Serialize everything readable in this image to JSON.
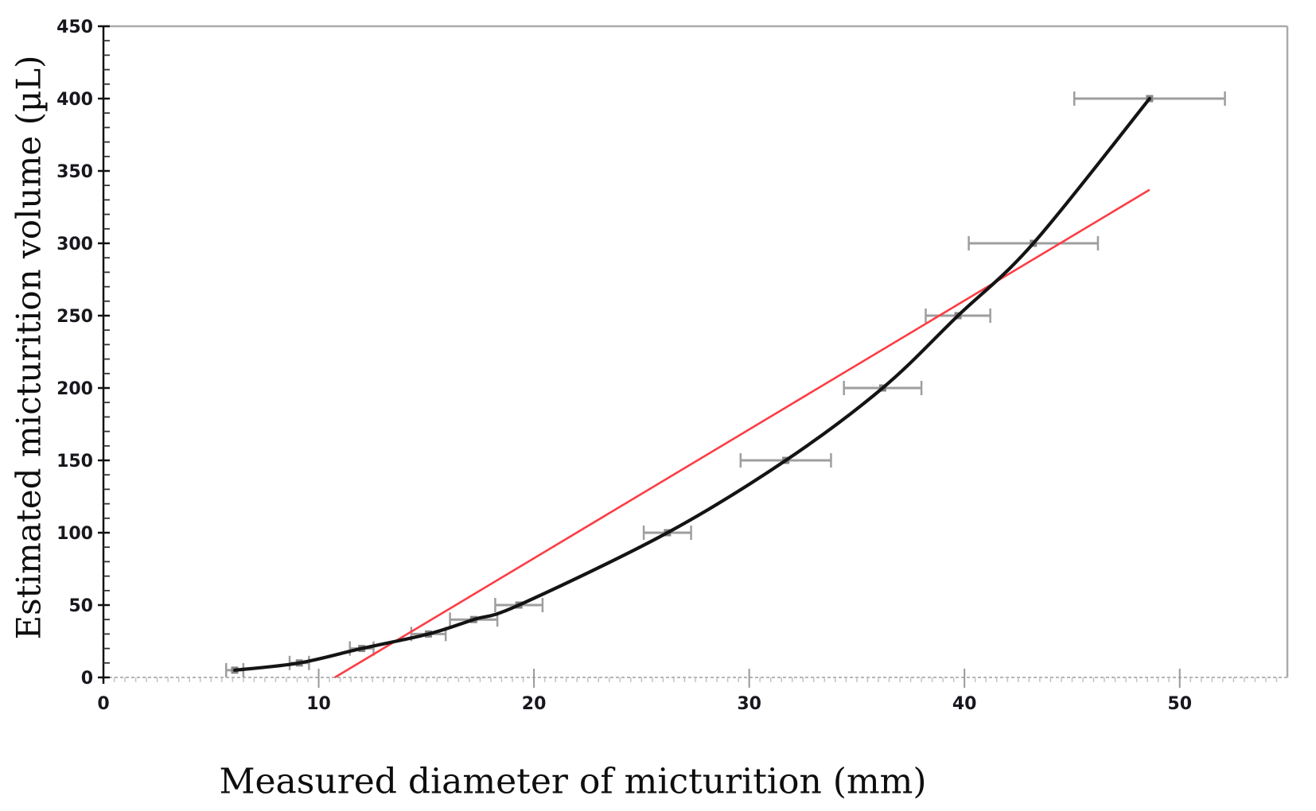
{
  "figure": {
    "x_axis_title": "Measured diameter of micturition (mm)",
    "y_axis_title": "Estimated micturition volume (µL)"
  },
  "chart_data": {
    "type": "scatter",
    "title": "",
    "xlabel": "Measured diameter of micturition (mm)",
    "ylabel": "Estimated micturition volume (µL)",
    "xlim": [
      0,
      55
    ],
    "ylim": [
      0,
      450
    ],
    "x_ticks_major": [
      0,
      10,
      20,
      30,
      40,
      50
    ],
    "x_tick_minor_step": 0.5,
    "y_ticks_major": [
      0,
      50,
      100,
      150,
      200,
      250,
      300,
      350,
      400,
      450
    ],
    "y_tick_minor_step": 10,
    "grid": "off",
    "legend": "none",
    "series": [
      {
        "name": "measured data with horizontal error bars",
        "role": "data-points",
        "marker": "square",
        "marker_color": "#858585",
        "errorbar_color": "#9e9e9e",
        "x": [
          6.1,
          9.1,
          12.0,
          15.1,
          17.2,
          19.3,
          26.2,
          31.7,
          36.2,
          39.7,
          43.2,
          48.6
        ],
        "y": [
          5,
          10,
          20,
          30,
          40,
          50,
          100,
          150,
          200,
          250,
          300,
          400
        ],
        "xerr": [
          0.4,
          0.45,
          0.55,
          0.8,
          1.1,
          1.1,
          1.1,
          2.1,
          1.8,
          1.5,
          3.0,
          3.5
        ]
      },
      {
        "name": "smooth curve fit through data points",
        "role": "curve-fit",
        "color": "#141414",
        "follows_points_of": "measured data with horizontal error bars"
      },
      {
        "name": "linear fit line",
        "role": "linear-fit",
        "color": "#fc3d44",
        "x": [
          10.75,
          48.6
        ],
        "y": [
          0,
          337
        ]
      }
    ],
    "axis_style": {
      "y_axis_color": "#111111",
      "frame_color": "#aaaaaa",
      "zero_line_style": "dashed",
      "zero_line_color": "#b5b5b5",
      "tick_label_color": "#17171d"
    }
  }
}
